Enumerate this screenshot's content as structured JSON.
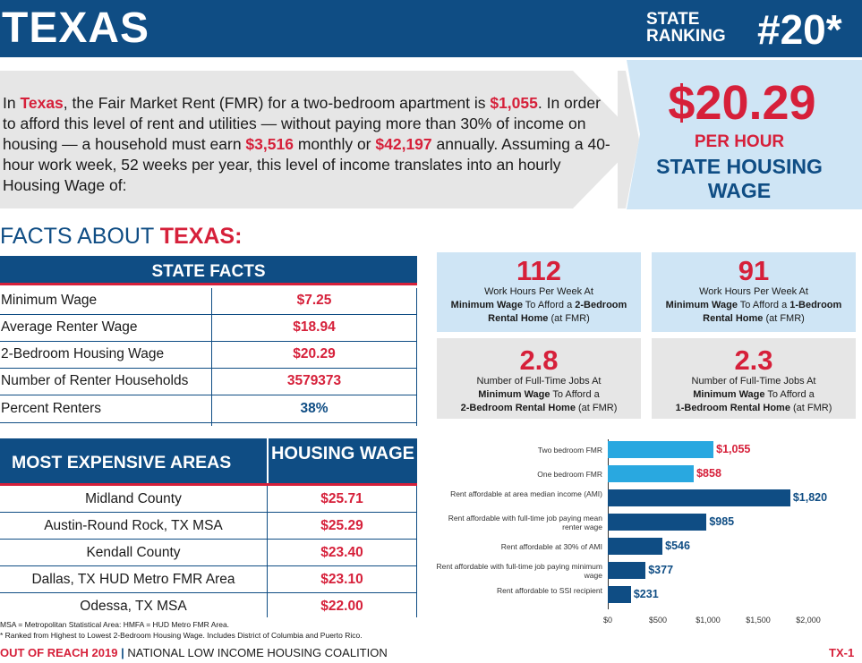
{
  "header": {
    "state": "TEXAS",
    "rank_label_1": "STATE",
    "rank_label_2": "RANKING",
    "rank_value": "#20*"
  },
  "intro": {
    "p1": "In ",
    "state": "Texas",
    "p2": ", the Fair Market Rent (FMR) for a two-bedroom apartment is ",
    "fmr": "$1,055",
    "p3": ". In order to afford this level of rent and utilities — without paying more than 30% of income on housing — a household must earn ",
    "monthly": "$3,516",
    "p4": " monthly or ",
    "annual": "$42,197",
    "p5": " annually. Assuming a 40-hour work week, 52 weeks per year, this level of income translates into an hourly Housing Wage of:"
  },
  "wage": {
    "value": "$20.29",
    "unit": "PER HOUR",
    "title": "STATE HOUSING WAGE"
  },
  "facts_heading": {
    "prefix": "FACTS ABOUT ",
    "state": "TEXAS:"
  },
  "state_facts": {
    "title": "STATE FACTS",
    "rows": [
      {
        "label": "Minimum Wage",
        "value": "$7.25"
      },
      {
        "label": "Average Renter Wage",
        "value": "$18.94"
      },
      {
        "label": "2-Bedroom Housing Wage",
        "value": "$20.29"
      },
      {
        "label": "Number of Renter Households",
        "value": "3579373"
      },
      {
        "label": "Percent Renters",
        "value": "38%"
      }
    ]
  },
  "areas": {
    "title": "MOST EXPENSIVE AREAS",
    "col_title": "HOUSING WAGE",
    "rows": [
      {
        "label": "Midland County",
        "value": "$25.71"
      },
      {
        "label": "Austin-Round Rock, TX MSA",
        "value": "$25.29"
      },
      {
        "label": "Kendall County",
        "value": "$23.40"
      },
      {
        "label": "Dallas, TX HUD Metro FMR Area",
        "value": "$23.10"
      },
      {
        "label": "Odessa, TX MSA",
        "value": "$22.00"
      }
    ]
  },
  "footnote": {
    "line1": "MSA = Metropolitan Statistical Area: HMFA = HUD Metro FMR Area.",
    "line2": "* Ranked from Highest to Lowest 2-Bedroom Housing Wage. Includes District of Columbia and Puerto Rico."
  },
  "footer": {
    "report": "OUT OF REACH 2019",
    "org": "NATIONAL LOW INCOME HOUSING COALITION",
    "page": "TX-1"
  },
  "stats": [
    {
      "num": "112",
      "line1": "Work Hours Per Week At",
      "bold1": "Minimum Wage",
      "mid": " To Afford a ",
      "bold2": "2-Bedroom Rental Home",
      "tail": " (at FMR)"
    },
    {
      "num": "91",
      "line1": "Work Hours Per Week At",
      "bold1": "Minimum Wage",
      "mid": " To Afford a ",
      "bold2": "1-Bedroom Rental Home",
      "tail": " (at FMR)"
    },
    {
      "num": "2.8",
      "line1": "Number of Full-Time Jobs At",
      "bold1": "Minimum Wage",
      "mid": " To Afford a ",
      "bold2": "2-Bedroom Rental Home",
      "tail": " (at FMR)"
    },
    {
      "num": "2.3",
      "line1": "Number of Full-Time Jobs At",
      "bold1": "Minimum Wage",
      "mid": " To Afford a ",
      "bold2": "1-Bedroom Rental Home",
      "tail": " (at FMR)"
    }
  ],
  "chart_data": {
    "type": "bar",
    "orientation": "horizontal",
    "categories": [
      "Two bedroom FMR",
      "One bedroom FMR",
      "Rent affordable at area median income (AMI)",
      "Rent affordable with full-time job paying mean renter wage",
      "Rent affordable at 30% of AMI",
      "Rent affordable with full-time job paying minimum wage",
      "Rent affordable to SSI recipient"
    ],
    "values": [
      1055,
      858,
      1820,
      985,
      546,
      377,
      231
    ],
    "value_labels": [
      "$1,055",
      "$858",
      "$1,820",
      "$985",
      "$546",
      "$377",
      "$231"
    ],
    "colors": [
      "#29a8e0",
      "#29a8e0",
      "#0f4d84",
      "#0f4d84",
      "#0f4d84",
      "#0f4d84",
      "#0f4d84"
    ],
    "label_colors": [
      "#d6203a",
      "#d6203a",
      "#0f4d84",
      "#0f4d84",
      "#0f4d84",
      "#0f4d84",
      "#0f4d84"
    ],
    "xlim": [
      0,
      2000
    ],
    "xticks": [
      "$0",
      "$500",
      "$1,000",
      "$1,500",
      "$2,000"
    ],
    "xtick_values": [
      0,
      500,
      1000,
      1500,
      2000
    ]
  },
  "colors": {
    "navy": "#0f4d84",
    "red": "#d6203a",
    "light_blue": "#cfe5f5",
    "gray": "#e6e6e6"
  }
}
